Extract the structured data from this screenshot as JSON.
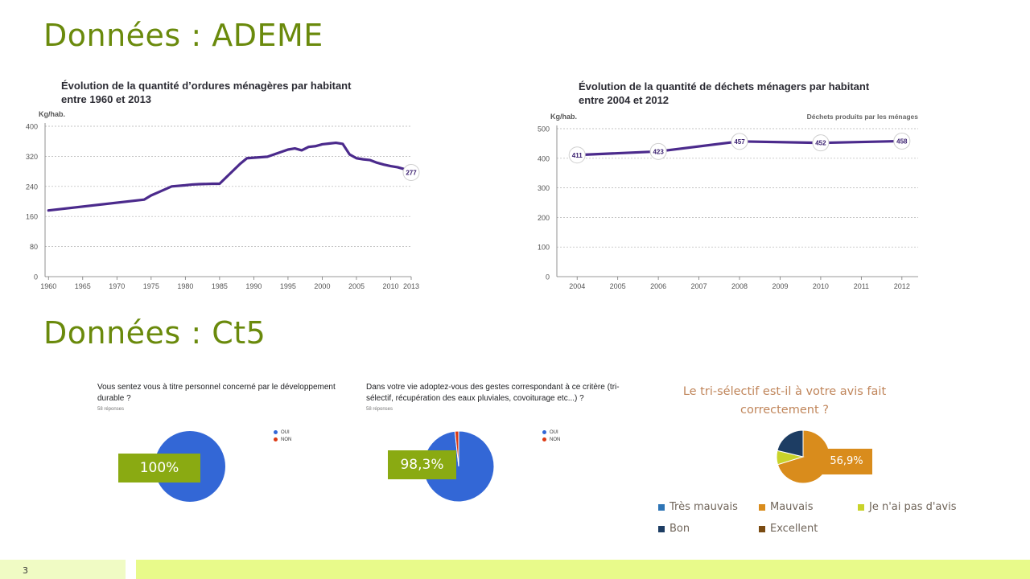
{
  "slide": {
    "heading_ademe": "Données : ADEME",
    "heading_ct5": "Données : Ct5",
    "page_number": "3"
  },
  "colors": {
    "heading": "#6a8a0c",
    "line": "#4b2a8c",
    "pie_blue": "#3367d6",
    "pie_red": "#dc3912",
    "pct_box": "#8aaa12",
    "footer_light": "#f0fbc4",
    "footer_bright": "#e8fa8a"
  },
  "chart_data": [
    {
      "type": "line",
      "title_line1": "Évolution de la quantité d’ordures ménagères par habitant",
      "title_line2": "entre 1960 et 2013",
      "ylabel": "Kg/hab.",
      "ylim": [
        0,
        400
      ],
      "yticks": [
        0,
        80,
        160,
        240,
        320,
        400
      ],
      "xticks": [
        1960,
        1965,
        1970,
        1975,
        1980,
        1985,
        1990,
        1995,
        2000,
        2005,
        2010,
        2013
      ],
      "xlim": [
        1959.5,
        2013
      ],
      "grid": true,
      "series": [
        {
          "x": [
            1960,
            1974,
            1975,
            1976,
            1978,
            1980,
            1981,
            1982,
            1984,
            1985,
            1988,
            1989,
            1992,
            1995,
            1996,
            1997,
            1998,
            1999,
            2000,
            2001,
            2002,
            2003,
            2004,
            2005,
            2006,
            2007,
            2008,
            2009,
            2010,
            2011,
            2012,
            2013
          ],
          "y": [
            176,
            205,
            216,
            224,
            240,
            243,
            245,
            246,
            247,
            247,
            300,
            315,
            319,
            338,
            341,
            336,
            345,
            347,
            352,
            354,
            356,
            353,
            325,
            315,
            312,
            310,
            303,
            298,
            294,
            291,
            286,
            277
          ]
        }
      ],
      "data_labels": [
        {
          "x": 2013,
          "y": 277,
          "label": "277"
        }
      ]
    },
    {
      "type": "line",
      "title_line1": "Évolution de la quantité de déchets ménagers par habitant",
      "title_line2": "entre 2004 et 2012",
      "ylabel": "Kg/hab.",
      "legend": "Déchets produits par les ménages",
      "ylim": [
        0,
        500
      ],
      "yticks": [
        0,
        100,
        200,
        300,
        400,
        500
      ],
      "xticks": [
        2004,
        2005,
        2006,
        2007,
        2008,
        2009,
        2010,
        2011,
        2012
      ],
      "xlim": [
        2003.5,
        2012.4
      ],
      "grid": true,
      "series": [
        {
          "name": "Déchets produits par les ménages",
          "x": [
            2004,
            2006,
            2008,
            2010,
            2012
          ],
          "y": [
            411,
            423,
            457,
            452,
            458
          ]
        }
      ],
      "data_labels": [
        {
          "x": 2004,
          "y": 411,
          "label": "411"
        },
        {
          "x": 2006,
          "y": 423,
          "label": "423"
        },
        {
          "x": 2008,
          "y": 457,
          "label": "457"
        },
        {
          "x": 2010,
          "y": 452,
          "label": "452"
        },
        {
          "x": 2012,
          "y": 458,
          "label": "458"
        }
      ]
    },
    {
      "type": "pie",
      "question_line1": "Vous sentez vous à titre personnel concerné par le développement",
      "question_line2": "durable ?",
      "responses": "58 réponses",
      "categories": [
        "OUI",
        "NON"
      ],
      "values": [
        100,
        0
      ],
      "colors": [
        "#3367d6",
        "#dc3912"
      ],
      "highlight_label": "100%"
    },
    {
      "type": "pie",
      "question_line1": "Dans votre vie adoptez-vous des gestes correspondant à ce critère (tri-",
      "question_line2": "sélectif, récupération des eaux pluviales, covoiturage etc...) ?",
      "responses": "58 réponses",
      "categories": [
        "OUI",
        "NON"
      ],
      "values": [
        98.3,
        1.7
      ],
      "colors": [
        "#3367d6",
        "#dc3912"
      ],
      "highlight_label": "98,3%"
    },
    {
      "type": "pie",
      "title_line1": "Le tri-sélectif est-il à votre avis fait",
      "title_line2": "correctement ?",
      "categories": [
        "Très mauvais",
        "Mauvais",
        "Je n'ai pas d'avis",
        "Bon",
        "Excellent"
      ],
      "values": [
        0,
        56.9,
        6.9,
        17.2,
        0
      ],
      "colors": [
        "#2e75b6",
        "#d98c1c",
        "#c9d32a",
        "#1d3d63",
        "#7a4b12"
      ],
      "highlight_label": "56,9%"
    }
  ]
}
